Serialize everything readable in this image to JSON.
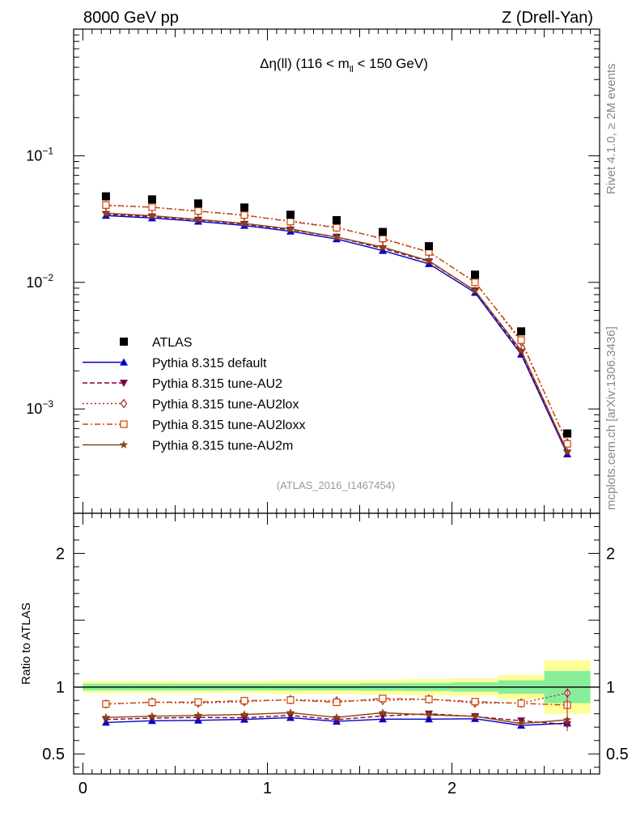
{
  "header": {
    "left": "8000 GeV pp",
    "right": "Z (Drell-Yan)"
  },
  "side": {
    "top_pre": "Rivet 4.1.0, ",
    "top_ge": "≥",
    "top_post": " 2M events",
    "bottom": "mcplots.cern.ch [arXiv:1306.3436]"
  },
  "analysis_id": "(ATLAS_2016_I1467454)",
  "colors": {
    "atlas": "#000000",
    "default": "#0000cc",
    "au2": "#800040",
    "au2lox": "#a52a2a",
    "au2loxx": "#cc4400",
    "au2m": "#8b4513",
    "band_inner": "#88ee99",
    "band_outer": "#ffff99"
  },
  "chart_data": [
    {
      "type": "line",
      "title": "Δη(ll) (116 < m_ll < 150 GeV)",
      "title_parts": {
        "pre": "Δη(ll) (116 < m",
        "sub": "ll",
        "post": " < 150 GeV)"
      },
      "xlabel": "",
      "ylabel": "",
      "yscale": "log",
      "xlim": [
        -0.05,
        2.8
      ],
      "ylim": [
        0.00015,
        1.0
      ],
      "xticks": [
        0,
        1,
        2
      ],
      "yticks": [
        {
          "value": 0.1,
          "base": "10",
          "exp": "−1"
        },
        {
          "value": 0.01,
          "base": "10",
          "exp": "−2"
        },
        {
          "value": 0.001,
          "base": "10",
          "exp": "−3"
        }
      ],
      "x": [
        0.125,
        0.375,
        0.625,
        0.875,
        1.125,
        1.375,
        1.625,
        1.875,
        2.125,
        2.375,
        2.625
      ],
      "x_edges": [
        0,
        0.25,
        0.5,
        0.75,
        1.0,
        1.25,
        1.5,
        1.75,
        2.0,
        2.25,
        2.5,
        2.75
      ],
      "legend_position": "middle-left",
      "series": [
        {
          "key": "atlas",
          "name": "ATLAS",
          "marker": "square",
          "line": "none",
          "values": [
            0.0478,
            0.0452,
            0.042,
            0.039,
            0.0342,
            0.031,
            0.025,
            0.0193,
            0.0115,
            0.0041,
            0.00064
          ]
        },
        {
          "key": "default",
          "name": "Pythia 8.315 default",
          "marker": "triangle-up",
          "line": "solid",
          "values": [
            0.0337,
            0.0322,
            0.0303,
            0.0281,
            0.0253,
            0.022,
            0.0178,
            0.014,
            0.0083,
            0.0027,
            0.00044
          ]
        },
        {
          "key": "au2",
          "name": "Pythia 8.315 tune-AU2",
          "marker": "triangle-down",
          "line": "dashed",
          "values": [
            0.0345,
            0.033,
            0.0311,
            0.0288,
            0.026,
            0.0228,
            0.0185,
            0.0146,
            0.0086,
            0.0028,
            0.00045
          ]
        },
        {
          "key": "au2lox",
          "name": "Pythia 8.315 tune-AU2lox",
          "marker": "diamond-open",
          "line": "dotted",
          "values": [
            0.0405,
            0.0392,
            0.0364,
            0.0338,
            0.0305,
            0.0272,
            0.022,
            0.0173,
            0.0101,
            0.0034,
            0.00054
          ]
        },
        {
          "key": "au2loxx",
          "name": "Pythia 8.315 tune-AU2loxx",
          "marker": "square-open",
          "line": "dashdot",
          "values": [
            0.0408,
            0.0392,
            0.0366,
            0.034,
            0.0302,
            0.027,
            0.0222,
            0.0174,
            0.01,
            0.0035,
            0.00053
          ]
        },
        {
          "key": "au2m",
          "name": "Pythia 8.315 tune-AU2m",
          "marker": "star",
          "line": "solid",
          "values": [
            0.0352,
            0.0336,
            0.0314,
            0.0292,
            0.0264,
            0.0228,
            0.019,
            0.0148,
            0.0086,
            0.0029,
            0.00046
          ]
        }
      ]
    },
    {
      "type": "line",
      "title": "",
      "xlabel": "",
      "ylabel": "Ratio to ATLAS",
      "yscale": "linear",
      "xlim": [
        -0.05,
        2.8
      ],
      "ylim": [
        0.35,
        2.3
      ],
      "xticks": [
        0,
        1,
        2
      ],
      "yticks": [
        0.5,
        1,
        2
      ],
      "ytick_labels": [
        "0.5",
        "1",
        "2"
      ],
      "x": [
        0.125,
        0.375,
        0.625,
        0.875,
        1.125,
        1.375,
        1.625,
        1.875,
        2.125,
        2.375,
        2.625
      ],
      "bands": {
        "inner_halfwidth": [
          0.025,
          0.025,
          0.025,
          0.025,
          0.025,
          0.025,
          0.028,
          0.03,
          0.035,
          0.05,
          0.12
        ],
        "outer_halfwidth": [
          0.045,
          0.045,
          0.045,
          0.045,
          0.05,
          0.05,
          0.055,
          0.06,
          0.065,
          0.09,
          0.2
        ]
      },
      "series": [
        {
          "key": "default",
          "name": "Pythia 8.315 default",
          "marker": "triangle-up",
          "line": "solid",
          "values": [
            0.735,
            0.748,
            0.751,
            0.758,
            0.771,
            0.743,
            0.76,
            0.76,
            0.763,
            0.713,
            0.73
          ]
        },
        {
          "key": "au2",
          "name": "Pythia 8.315 tune-AU2",
          "marker": "triangle-down",
          "line": "dashed",
          "values": [
            0.757,
            0.768,
            0.773,
            0.77,
            0.788,
            0.756,
            0.784,
            0.8,
            0.78,
            0.748,
            0.72
          ]
        },
        {
          "key": "au2lox",
          "name": "Pythia 8.315 tune-AU2lox",
          "marker": "diamond-open",
          "line": "dotted",
          "values": [
            0.873,
            0.887,
            0.88,
            0.891,
            0.906,
            0.896,
            0.9,
            0.91,
            0.88,
            0.88,
            0.955
          ]
        },
        {
          "key": "au2loxx",
          "name": "Pythia 8.315 tune-AU2loxx",
          "marker": "square-open",
          "line": "dashdot",
          "values": [
            0.873,
            0.886,
            0.888,
            0.898,
            0.903,
            0.886,
            0.915,
            0.908,
            0.891,
            0.878,
            0.865
          ]
        },
        {
          "key": "au2m",
          "name": "Pythia 8.315 tune-AU2m",
          "marker": "star",
          "line": "solid",
          "values": [
            0.773,
            0.782,
            0.788,
            0.795,
            0.808,
            0.773,
            0.808,
            0.792,
            0.781,
            0.727,
            0.755
          ]
        }
      ]
    }
  ]
}
